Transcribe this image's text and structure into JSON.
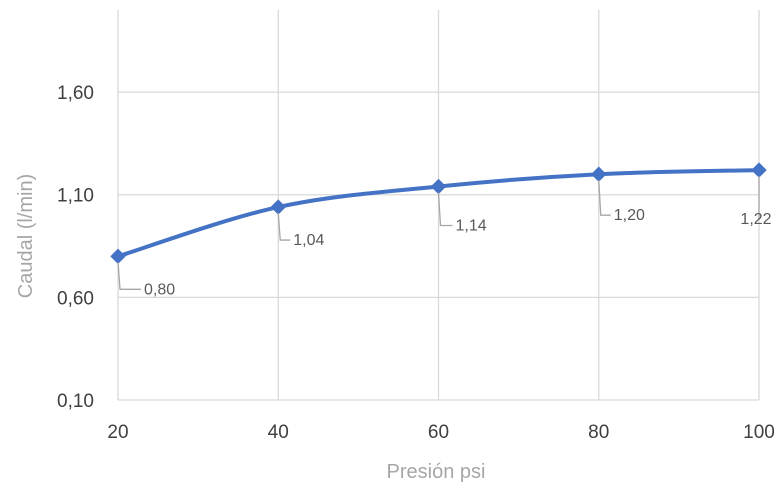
{
  "chart_data": {
    "type": "line",
    "title": "",
    "xlabel": "Presión psi",
    "ylabel": "Caudal (l/min)",
    "x": [
      20,
      40,
      60,
      80,
      100
    ],
    "x_ticks": [
      "20",
      "40",
      "60",
      "80",
      "100"
    ],
    "xlim": [
      20,
      100
    ],
    "y_ticks": [
      0.1,
      0.6,
      1.1,
      1.6
    ],
    "y_tick_labels": [
      "0,10",
      "0,60",
      "1,10",
      "1,60"
    ],
    "ylim": [
      0.1,
      2.0
    ],
    "series": [
      {
        "values": [
          0.8,
          1.04,
          1.14,
          1.2,
          1.22
        ],
        "data_labels": [
          "0,80",
          "1,04",
          "1,14",
          "1,20",
          "1,22"
        ],
        "color": "#4472c4",
        "smooth": true,
        "marker": "diamond"
      }
    ],
    "grid": true,
    "legend": "none"
  }
}
